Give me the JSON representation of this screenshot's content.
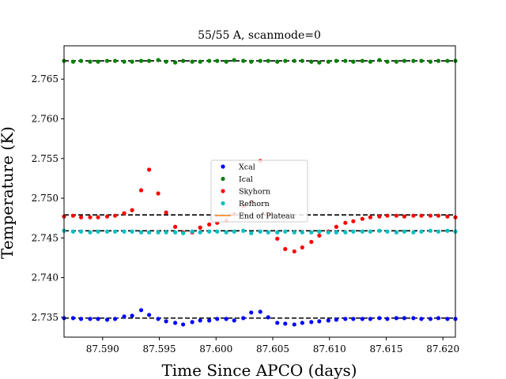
{
  "chart_data": {
    "type": "scatter",
    "title": "55/55 A, scanmode=0",
    "xlabel": "Time Since APCO (days)",
    "ylabel": "Temperature (K)",
    "xlim": [
      87.5866,
      87.6211
    ],
    "ylim": [
      2.7325,
      2.7692
    ],
    "xticks": [
      87.59,
      87.595,
      87.6,
      87.605,
      87.61,
      87.615,
      87.62
    ],
    "xtick_labels": [
      "87.590",
      "87.595",
      "87.600",
      "87.605",
      "87.610",
      "87.615",
      "87.620"
    ],
    "yticks": [
      2.735,
      2.74,
      2.745,
      2.75,
      2.755,
      2.76,
      2.765
    ],
    "ytick_labels": [
      "2.735",
      "2.740",
      "2.745",
      "2.750",
      "2.755",
      "2.760",
      "2.765"
    ],
    "grid": false,
    "legend_position": "center",
    "reference_lines": [
      {
        "y": 2.7349,
        "color": "#000000",
        "style": "dashed"
      },
      {
        "y": 2.7459,
        "color": "#000000",
        "style": "dashed"
      },
      {
        "y": 2.7479,
        "color": "#000000",
        "style": "dashed"
      },
      {
        "y": 2.7673,
        "color": "#000000",
        "style": "dashed"
      }
    ],
    "series": [
      {
        "name": "Xcal",
        "color": "#0000ff",
        "kind": "points",
        "x": [
          87.5866,
          87.5874,
          87.5881,
          87.5889,
          87.5896,
          87.5904,
          87.5911,
          87.5919,
          87.5926,
          87.5934,
          87.5941,
          87.5949,
          87.5956,
          87.5964,
          87.5971,
          87.5979,
          87.5986,
          87.5994,
          87.6001,
          87.6009,
          87.6016,
          87.6024,
          87.6031,
          87.6039,
          87.6046,
          87.6054,
          87.6061,
          87.6069,
          87.6076,
          87.6084,
          87.6091,
          87.6099,
          87.6106,
          87.6114,
          87.6121,
          87.6129,
          87.6136,
          87.6144,
          87.6151,
          87.6159,
          87.6166,
          87.6174,
          87.6181,
          87.6189,
          87.6196,
          87.6204,
          87.6211
        ],
        "y": [
          2.7349,
          2.7349,
          2.7348,
          2.7348,
          2.7348,
          2.7347,
          2.7348,
          2.7351,
          2.7352,
          2.7359,
          2.7353,
          2.7348,
          2.7345,
          2.7343,
          2.7341,
          2.7344,
          2.7346,
          2.7346,
          2.7348,
          2.7348,
          2.7346,
          2.7349,
          2.7356,
          2.7357,
          2.735,
          2.7343,
          2.7342,
          2.7341,
          2.7343,
          2.7344,
          2.7345,
          2.7346,
          2.7347,
          2.7348,
          2.7348,
          2.7348,
          2.7348,
          2.7349,
          2.7348,
          2.7349,
          2.7349,
          2.7349,
          2.7348,
          2.7348,
          2.7349,
          2.7348,
          2.7348
        ]
      },
      {
        "name": "Ical",
        "color": "#008000",
        "kind": "points",
        "x": [
          87.5866,
          87.5874,
          87.5881,
          87.5889,
          87.5896,
          87.5904,
          87.5911,
          87.5919,
          87.5926,
          87.5934,
          87.5941,
          87.5949,
          87.5956,
          87.5964,
          87.5971,
          87.5979,
          87.5986,
          87.5994,
          87.6001,
          87.6009,
          87.6016,
          87.6024,
          87.6031,
          87.6039,
          87.6046,
          87.6054,
          87.6061,
          87.6069,
          87.6076,
          87.6084,
          87.6091,
          87.6099,
          87.6106,
          87.6114,
          87.6121,
          87.6129,
          87.6136,
          87.6144,
          87.6151,
          87.6159,
          87.6166,
          87.6174,
          87.6181,
          87.6189,
          87.6196,
          87.6204,
          87.6211
        ],
        "y": [
          2.7673,
          2.7672,
          2.7673,
          2.7672,
          2.7672,
          2.7673,
          2.7673,
          2.7672,
          2.7672,
          2.7673,
          2.7673,
          2.7674,
          2.7672,
          2.7671,
          2.7673,
          2.7672,
          2.7672,
          2.7673,
          2.7673,
          2.7672,
          2.7674,
          2.7673,
          2.7672,
          2.7673,
          2.7673,
          2.7672,
          2.7673,
          2.7673,
          2.7673,
          2.7672,
          2.7671,
          2.7672,
          2.7673,
          2.7673,
          2.7672,
          2.7673,
          2.7672,
          2.7674,
          2.7672,
          2.7672,
          2.7673,
          2.7673,
          2.7673,
          2.7672,
          2.7673,
          2.7673,
          2.7673
        ]
      },
      {
        "name": "Skyhorn",
        "color": "#ff0000",
        "kind": "points",
        "x": [
          87.5866,
          87.5874,
          87.5881,
          87.5889,
          87.5896,
          87.5904,
          87.5911,
          87.5919,
          87.5926,
          87.5934,
          87.5941,
          87.5949,
          87.5956,
          87.5964,
          87.5971,
          87.5979,
          87.5986,
          87.5994,
          87.6001,
          87.6009,
          87.6016,
          87.6024,
          87.6031,
          87.6039,
          87.6046,
          87.6054,
          87.6061,
          87.6069,
          87.6076,
          87.6084,
          87.6091,
          87.6099,
          87.6106,
          87.6114,
          87.6121,
          87.6129,
          87.6136,
          87.6144,
          87.6151,
          87.6159,
          87.6166,
          87.6174,
          87.6181,
          87.6189,
          87.6196,
          87.6204,
          87.6211
        ],
        "y": [
          2.7477,
          2.7478,
          2.7476,
          2.7476,
          2.7476,
          2.7477,
          2.7478,
          2.7481,
          2.7485,
          2.751,
          2.7536,
          2.7506,
          2.7482,
          2.7464,
          2.7457,
          2.7457,
          2.7463,
          2.7467,
          2.7469,
          2.7472,
          2.748,
          2.749,
          2.7495,
          2.7547,
          2.748,
          2.7449,
          2.7436,
          2.7433,
          2.7438,
          2.7445,
          2.7453,
          2.7458,
          2.7464,
          2.7469,
          2.7471,
          2.7474,
          2.7476,
          2.7477,
          2.7478,
          2.7478,
          2.7477,
          2.7478,
          2.7478,
          2.7478,
          2.7478,
          2.7477,
          2.7476
        ]
      },
      {
        "name": "Refhorn",
        "color": "#00bfbf",
        "kind": "points",
        "x": [
          87.5866,
          87.5874,
          87.5881,
          87.5889,
          87.5896,
          87.5904,
          87.5911,
          87.5919,
          87.5926,
          87.5934,
          87.5941,
          87.5949,
          87.5956,
          87.5964,
          87.5971,
          87.5979,
          87.5986,
          87.5994,
          87.6001,
          87.6009,
          87.6016,
          87.6024,
          87.6031,
          87.6039,
          87.6046,
          87.6054,
          87.6061,
          87.6069,
          87.6076,
          87.6084,
          87.6091,
          87.6099,
          87.6106,
          87.6114,
          87.6121,
          87.6129,
          87.6136,
          87.6144,
          87.6151,
          87.6159,
          87.6166,
          87.6174,
          87.6181,
          87.6189,
          87.6196,
          87.6204,
          87.6211
        ],
        "y": [
          2.7459,
          2.7458,
          2.7458,
          2.7457,
          2.7458,
          2.7458,
          2.7458,
          2.7458,
          2.7458,
          2.7457,
          2.7457,
          2.7457,
          2.7457,
          2.7457,
          2.7456,
          2.7458,
          2.7457,
          2.7458,
          2.7458,
          2.7457,
          2.7458,
          2.7459,
          2.7456,
          2.7458,
          2.7457,
          2.7457,
          2.7458,
          2.7457,
          2.7457,
          2.7457,
          2.7458,
          2.7457,
          2.7457,
          2.7457,
          2.7458,
          2.7458,
          2.7458,
          2.7459,
          2.7458,
          2.7457,
          2.7458,
          2.7457,
          2.7458,
          2.7459,
          2.7458,
          2.7459,
          2.7458
        ]
      },
      {
        "name": "End of Plateau",
        "color": "#ff7f0e",
        "kind": "line",
        "x": [],
        "y": []
      }
    ]
  }
}
